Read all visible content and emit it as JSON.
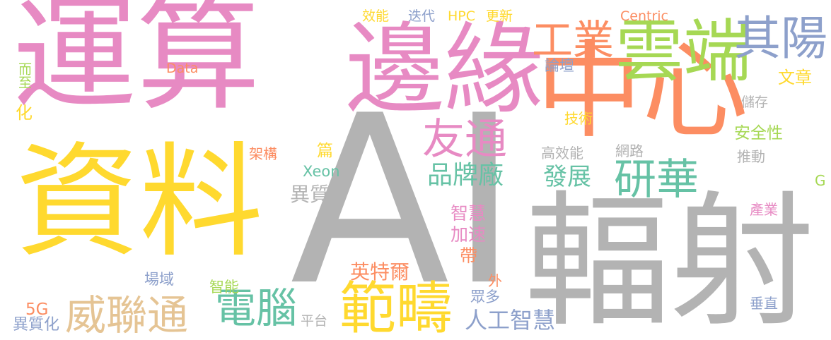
{
  "colors": {
    "pink": "#e78ac3",
    "orange": "#fc8d62",
    "green": "#a6d854",
    "teal": "#66c2a5",
    "blue": "#8da0cb",
    "yellow": "#ffd92f",
    "tan": "#e5c494",
    "gray": "#b3b3b3"
  },
  "words": [
    {
      "text": "運算",
      "color": "pink"
    },
    {
      "text": "邊緣",
      "color": "pink"
    },
    {
      "text": "中心",
      "color": "orange"
    },
    {
      "text": "雲端",
      "color": "green"
    },
    {
      "text": "其陽",
      "color": "blue"
    },
    {
      "text": "工業",
      "color": "orange"
    },
    {
      "text": "資料",
      "color": "yellow"
    },
    {
      "text": "AI",
      "color": "gray"
    },
    {
      "text": "輻射",
      "color": "gray"
    },
    {
      "text": "友通",
      "color": "pink"
    },
    {
      "text": "研華",
      "color": "teal"
    },
    {
      "text": "品牌廠",
      "color": "teal"
    },
    {
      "text": "發展",
      "color": "teal"
    },
    {
      "text": "範疇",
      "color": "yellow"
    },
    {
      "text": "電腦",
      "color": "teal"
    },
    {
      "text": "威聯通",
      "color": "tan"
    },
    {
      "text": "人工智慧",
      "color": "blue"
    },
    {
      "text": "英特爾",
      "color": "orange"
    },
    {
      "text": "效能",
      "color": "yellow"
    },
    {
      "text": "迭代",
      "color": "blue"
    },
    {
      "text": "HPC",
      "color": "yellow"
    },
    {
      "text": "更新",
      "color": "yellow"
    },
    {
      "text": "Centric",
      "color": "orange"
    },
    {
      "text": "Data",
      "color": "orange"
    },
    {
      "text": "而至",
      "color": "green"
    },
    {
      "text": "化",
      "color": "yellow"
    },
    {
      "text": "論壇",
      "color": "blue"
    },
    {
      "text": "文章",
      "color": "yellow"
    },
    {
      "text": "儲存",
      "color": "gray"
    },
    {
      "text": "技術",
      "color": "yellow"
    },
    {
      "text": "安全性",
      "color": "green"
    },
    {
      "text": "推動",
      "color": "gray"
    },
    {
      "text": "網路",
      "color": "gray"
    },
    {
      "text": "高效能",
      "color": "gray"
    },
    {
      "text": "架構",
      "color": "orange"
    },
    {
      "text": "篇",
      "color": "yellow"
    },
    {
      "text": "Xeon",
      "color": "teal"
    },
    {
      "text": "異質",
      "color": "gray"
    },
    {
      "text": "G",
      "color": "green"
    },
    {
      "text": "智慧",
      "color": "pink"
    },
    {
      "text": "加速",
      "color": "pink"
    },
    {
      "text": "帶",
      "color": "orange"
    },
    {
      "text": "產業",
      "color": "pink"
    },
    {
      "text": "場域",
      "color": "blue"
    },
    {
      "text": "智能",
      "color": "green"
    },
    {
      "text": "外",
      "color": "orange"
    },
    {
      "text": "眾多",
      "color": "blue"
    },
    {
      "text": "5G",
      "color": "orange"
    },
    {
      "text": "異質化",
      "color": "blue"
    },
    {
      "text": "平台",
      "color": "gray"
    },
    {
      "text": "垂直",
      "color": "blue"
    }
  ]
}
